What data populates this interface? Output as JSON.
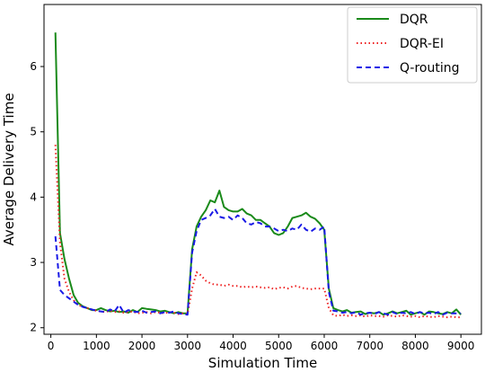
{
  "chart_data": {
    "type": "line",
    "xlabel": "Simulation Time",
    "ylabel": "Average Delivery Time",
    "xlim": [
      -150,
      9450
    ],
    "ylim": [
      1.9,
      6.95
    ],
    "x_ticks": [
      0,
      1000,
      2000,
      3000,
      4000,
      5000,
      6000,
      7000,
      8000,
      9000
    ],
    "y_ticks": [
      2,
      3,
      4,
      5,
      6
    ],
    "grid": false,
    "legend_position": "top-right",
    "series": [
      {
        "name": "DQR",
        "color": "#1a8a1a",
        "style": "solid",
        "x": [
          100,
          200,
          300,
          400,
          500,
          600,
          700,
          800,
          900,
          1000,
          1100,
          1200,
          1300,
          1400,
          1500,
          1600,
          1700,
          1800,
          1900,
          2000,
          2100,
          2200,
          2300,
          2400,
          2500,
          2600,
          2700,
          2800,
          2900,
          3000,
          3100,
          3200,
          3300,
          3400,
          3500,
          3600,
          3700,
          3800,
          3900,
          4000,
          4100,
          4200,
          4300,
          4400,
          4500,
          4600,
          4700,
          4800,
          4900,
          5000,
          5100,
          5200,
          5300,
          5400,
          5500,
          5600,
          5700,
          5800,
          5900,
          6000,
          6100,
          6200,
          6300,
          6400,
          6500,
          6600,
          6700,
          6800,
          6900,
          7000,
          7100,
          7200,
          7300,
          7400,
          7500,
          7600,
          7700,
          7800,
          7900,
          8000,
          8100,
          8200,
          8300,
          8400,
          8500,
          8600,
          8700,
          8800,
          8900,
          9000
        ],
        "y": [
          6.52,
          3.45,
          3.05,
          2.75,
          2.5,
          2.38,
          2.33,
          2.3,
          2.27,
          2.27,
          2.3,
          2.27,
          2.25,
          2.26,
          2.24,
          2.25,
          2.23,
          2.27,
          2.24,
          2.3,
          2.29,
          2.28,
          2.27,
          2.25,
          2.26,
          2.24,
          2.22,
          2.24,
          2.22,
          2.22,
          3.2,
          3.55,
          3.7,
          3.8,
          3.95,
          3.92,
          4.1,
          3.85,
          3.8,
          3.78,
          3.78,
          3.82,
          3.75,
          3.72,
          3.65,
          3.65,
          3.6,
          3.55,
          3.45,
          3.42,
          3.45,
          3.55,
          3.68,
          3.7,
          3.72,
          3.76,
          3.7,
          3.67,
          3.6,
          3.5,
          2.6,
          2.3,
          2.27,
          2.25,
          2.27,
          2.23,
          2.24,
          2.25,
          2.21,
          2.23,
          2.22,
          2.24,
          2.2,
          2.22,
          2.25,
          2.22,
          2.24,
          2.26,
          2.2,
          2.22,
          2.24,
          2.2,
          2.25,
          2.24,
          2.22,
          2.21,
          2.24,
          2.22,
          2.28,
          2.2
        ]
      },
      {
        "name": "DQR-EI",
        "color": "#ee2222",
        "style": "dotted",
        "x": [
          100,
          200,
          300,
          400,
          500,
          600,
          700,
          800,
          900,
          1000,
          1100,
          1200,
          1300,
          1400,
          1500,
          1600,
          1700,
          1800,
          1900,
          2000,
          2100,
          2200,
          2300,
          2400,
          2500,
          2600,
          2700,
          2800,
          2900,
          3000,
          3100,
          3200,
          3300,
          3400,
          3500,
          3600,
          3700,
          3800,
          3900,
          4000,
          4100,
          4200,
          4300,
          4400,
          4500,
          4600,
          4700,
          4800,
          4900,
          5000,
          5100,
          5200,
          5300,
          5400,
          5500,
          5600,
          5700,
          5800,
          5900,
          6000,
          6100,
          6200,
          6300,
          6400,
          6500,
          6600,
          6700,
          6800,
          6900,
          7000,
          7100,
          7200,
          7300,
          7400,
          7500,
          7600,
          7700,
          7800,
          7900,
          8000,
          8100,
          8200,
          8300,
          8400,
          8500,
          8600,
          8700,
          8800,
          8900,
          9000
        ],
        "y": [
          4.8,
          3.3,
          2.75,
          2.55,
          2.42,
          2.35,
          2.32,
          2.3,
          2.28,
          2.26,
          2.25,
          2.24,
          2.26,
          2.24,
          2.25,
          2.23,
          2.24,
          2.25,
          2.22,
          2.23,
          2.24,
          2.22,
          2.24,
          2.23,
          2.22,
          2.24,
          2.23,
          2.21,
          2.22,
          2.21,
          2.6,
          2.85,
          2.8,
          2.72,
          2.68,
          2.66,
          2.66,
          2.64,
          2.66,
          2.64,
          2.64,
          2.62,
          2.63,
          2.62,
          2.63,
          2.62,
          2.61,
          2.62,
          2.59,
          2.61,
          2.62,
          2.6,
          2.63,
          2.64,
          2.61,
          2.6,
          2.59,
          2.6,
          2.6,
          2.6,
          2.3,
          2.19,
          2.18,
          2.2,
          2.18,
          2.19,
          2.18,
          2.19,
          2.17,
          2.19,
          2.18,
          2.18,
          2.17,
          2.19,
          2.18,
          2.17,
          2.19,
          2.18,
          2.17,
          2.18,
          2.16,
          2.18,
          2.17,
          2.16,
          2.18,
          2.17,
          2.16,
          2.17,
          2.16,
          2.16
        ]
      },
      {
        "name": "Q-routing",
        "color": "#1a1ae6",
        "style": "dashed",
        "x": [
          100,
          200,
          300,
          400,
          500,
          600,
          700,
          800,
          900,
          1000,
          1100,
          1200,
          1300,
          1400,
          1500,
          1600,
          1700,
          1800,
          1900,
          2000,
          2100,
          2200,
          2300,
          2400,
          2500,
          2600,
          2700,
          2800,
          2900,
          3000,
          3100,
          3200,
          3300,
          3400,
          3500,
          3600,
          3700,
          3800,
          3900,
          4000,
          4100,
          4200,
          4300,
          4400,
          4500,
          4600,
          4700,
          4800,
          4900,
          5000,
          5100,
          5200,
          5300,
          5400,
          5500,
          5600,
          5700,
          5800,
          5900,
          6000,
          6100,
          6200,
          6300,
          6400,
          6500,
          6600,
          6700,
          6800,
          6900,
          7000,
          7100,
          7200,
          7300,
          7400,
          7500,
          7600,
          7700,
          7800,
          7900,
          8000,
          8100,
          8200,
          8300,
          8400,
          8500,
          8600,
          8700,
          8800,
          8900,
          9000
        ],
        "y": [
          3.4,
          2.58,
          2.5,
          2.45,
          2.4,
          2.35,
          2.32,
          2.3,
          2.28,
          2.26,
          2.25,
          2.24,
          2.28,
          2.25,
          2.35,
          2.23,
          2.27,
          2.25,
          2.24,
          2.26,
          2.23,
          2.24,
          2.25,
          2.22,
          2.24,
          2.23,
          2.25,
          2.22,
          2.21,
          2.2,
          3.15,
          3.48,
          3.65,
          3.68,
          3.72,
          3.82,
          3.7,
          3.68,
          3.7,
          3.65,
          3.72,
          3.68,
          3.6,
          3.58,
          3.62,
          3.6,
          3.55,
          3.55,
          3.52,
          3.48,
          3.5,
          3.48,
          3.52,
          3.5,
          3.58,
          3.5,
          3.47,
          3.52,
          3.5,
          3.55,
          2.55,
          2.26,
          2.25,
          2.23,
          2.24,
          2.22,
          2.24,
          2.2,
          2.22,
          2.23,
          2.21,
          2.24,
          2.22,
          2.2,
          2.24,
          2.21,
          2.23,
          2.22,
          2.24,
          2.21,
          2.24,
          2.22,
          2.23,
          2.21,
          2.24,
          2.2,
          2.23,
          2.22,
          2.22,
          2.22
        ]
      }
    ]
  }
}
